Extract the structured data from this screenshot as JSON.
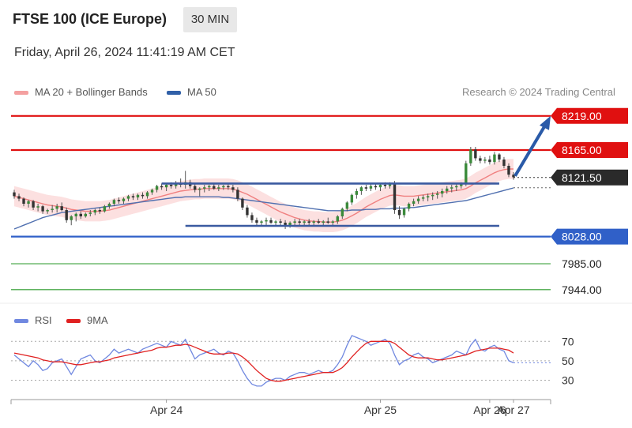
{
  "header": {
    "title": "FTSE 100 (ICE Europe)",
    "timeframe": "30 MIN",
    "timestamp": "Friday, April 26, 2024 11:41:19 AM CET"
  },
  "legend": [
    {
      "label": "MA 20 + Bollinger Bands",
      "color": "#f08080"
    },
    {
      "label": "MA 50",
      "color": "#3060a8"
    }
  ],
  "credit": "Research © 2024 Trading Central",
  "chart_data": [
    {
      "type": "candlestick",
      "ylim": [
        7925,
        8240
      ],
      "x_labels": [
        "Apr 24",
        "Apr 25",
        "Apr 26",
        "Apr 27"
      ],
      "current_price": "8121.50",
      "levels": [
        {
          "value": 8219.0,
          "label": "8219.00",
          "kind": "resistance",
          "color": "#e01010",
          "style": "solid-thick"
        },
        {
          "value": 8165.0,
          "label": "8165.00",
          "kind": "resistance",
          "color": "#e01010",
          "style": "solid-thick"
        },
        {
          "value": 8028.0,
          "label": "8028.00",
          "kind": "pivot",
          "color": "#3060c8",
          "style": "solid-thick"
        },
        {
          "value": 7985.0,
          "label": "7985.00",
          "kind": "support",
          "color": "#2a9a2a",
          "style": "thin"
        },
        {
          "value": 7944.0,
          "label": "7944.00",
          "kind": "support",
          "color": "#2a9a2a",
          "style": "thin"
        }
      ],
      "channel_lines": [
        {
          "from_index": 32,
          "to_index": 102,
          "value": 8112
        },
        {
          "from_index": 37,
          "to_index": 102,
          "value": 8045
        }
      ],
      "ohlc": [
        [
          8098,
          8102,
          8088,
          8092
        ],
        [
          8092,
          8096,
          8084,
          8088
        ],
        [
          8088,
          8090,
          8076,
          8080
        ],
        [
          8080,
          8086,
          8074,
          8084
        ],
        [
          8084,
          8086,
          8070,
          8074
        ],
        [
          8074,
          8080,
          8068,
          8076
        ],
        [
          8076,
          8078,
          8064,
          8068
        ],
        [
          8068,
          8072,
          8064,
          8070
        ],
        [
          8070,
          8078,
          8066,
          8072
        ],
        [
          8072,
          8080,
          8066,
          8076
        ],
        [
          8076,
          8082,
          8068,
          8070
        ],
        [
          8070,
          8074,
          8050,
          8054
        ],
        [
          8054,
          8062,
          8046,
          8060
        ],
        [
          8060,
          8066,
          8052,
          8064
        ],
        [
          8064,
          8068,
          8056,
          8060
        ],
        [
          8060,
          8066,
          8058,
          8064
        ],
        [
          8064,
          8070,
          8060,
          8066
        ],
        [
          8066,
          8072,
          8062,
          8070
        ],
        [
          8070,
          8074,
          8064,
          8068
        ],
        [
          8068,
          8078,
          8066,
          8076
        ],
        [
          8076,
          8082,
          8072,
          8080
        ],
        [
          8080,
          8088,
          8076,
          8086
        ],
        [
          8086,
          8090,
          8080,
          8084
        ],
        [
          8084,
          8090,
          8080,
          8088
        ],
        [
          8088,
          8094,
          8084,
          8092
        ],
        [
          8092,
          8096,
          8086,
          8090
        ],
        [
          8090,
          8096,
          8086,
          8094
        ],
        [
          8094,
          8098,
          8088,
          8092
        ],
        [
          8092,
          8100,
          8088,
          8098
        ],
        [
          8098,
          8104,
          8094,
          8102
        ],
        [
          8102,
          8110,
          8098,
          8108
        ],
        [
          8108,
          8112,
          8102,
          8106
        ],
        [
          8106,
          8112,
          8100,
          8110
        ],
        [
          8110,
          8114,
          8104,
          8108
        ],
        [
          8108,
          8116,
          8104,
          8112
        ],
        [
          8112,
          8120,
          8106,
          8110
        ],
        [
          8110,
          8132,
          8104,
          8114
        ],
        [
          8114,
          8118,
          8104,
          8108
        ],
        [
          8108,
          8112,
          8098,
          8102
        ],
        [
          8102,
          8106,
          8092,
          8104
        ],
        [
          8104,
          8110,
          8098,
          8106
        ],
        [
          8106,
          8110,
          8100,
          8108
        ],
        [
          8108,
          8112,
          8102,
          8104
        ],
        [
          8104,
          8110,
          8100,
          8106
        ],
        [
          8106,
          8110,
          8102,
          8108
        ],
        [
          8108,
          8112,
          8102,
          8106
        ],
        [
          8106,
          8110,
          8098,
          8102
        ],
        [
          8102,
          8106,
          8084,
          8088
        ],
        [
          8088,
          8090,
          8070,
          8074
        ],
        [
          8074,
          8078,
          8058,
          8062
        ],
        [
          8062,
          8066,
          8050,
          8054
        ],
        [
          8054,
          8058,
          8046,
          8050
        ],
        [
          8050,
          8054,
          8044,
          8052
        ],
        [
          8052,
          8058,
          8046,
          8054
        ],
        [
          8054,
          8058,
          8048,
          8050
        ],
        [
          8050,
          8054,
          8044,
          8052
        ],
        [
          8052,
          8056,
          8046,
          8050
        ],
        [
          8050,
          8054,
          8040,
          8046
        ],
        [
          8046,
          8052,
          8042,
          8050
        ],
        [
          8050,
          8056,
          8046,
          8052
        ],
        [
          8052,
          8056,
          8046,
          8050
        ],
        [
          8050,
          8054,
          8046,
          8052
        ],
        [
          8052,
          8056,
          8046,
          8050
        ],
        [
          8050,
          8054,
          8046,
          8052
        ],
        [
          8052,
          8056,
          8048,
          8050
        ],
        [
          8050,
          8054,
          8046,
          8052
        ],
        [
          8052,
          8058,
          8048,
          8050
        ],
        [
          8050,
          8054,
          8046,
          8052
        ],
        [
          8052,
          8062,
          8048,
          8060
        ],
        [
          8060,
          8074,
          8056,
          8072
        ],
        [
          8072,
          8084,
          8068,
          8082
        ],
        [
          8082,
          8096,
          8078,
          8094
        ],
        [
          8094,
          8104,
          8088,
          8100
        ],
        [
          8100,
          8108,
          8094,
          8106
        ],
        [
          8106,
          8110,
          8100,
          8104
        ],
        [
          8104,
          8112,
          8100,
          8108
        ],
        [
          8108,
          8112,
          8102,
          8106
        ],
        [
          8106,
          8112,
          8100,
          8110
        ],
        [
          8110,
          8114,
          8104,
          8108
        ],
        [
          8108,
          8114,
          8104,
          8112
        ],
        [
          8112,
          8116,
          8064,
          8070
        ],
        [
          8070,
          8076,
          8056,
          8062
        ],
        [
          8062,
          8074,
          8058,
          8072
        ],
        [
          8072,
          8082,
          8068,
          8080
        ],
        [
          8080,
          8088,
          8076,
          8084
        ],
        [
          8084,
          8092,
          8080,
          8088
        ],
        [
          8088,
          8094,
          8084,
          8090
        ],
        [
          8090,
          8096,
          8084,
          8092
        ],
        [
          8092,
          8098,
          8086,
          8094
        ],
        [
          8094,
          8100,
          8088,
          8096
        ],
        [
          8096,
          8104,
          8090,
          8100
        ],
        [
          8100,
          8108,
          8096,
          8104
        ],
        [
          8104,
          8110,
          8098,
          8106
        ],
        [
          8106,
          8112,
          8100,
          8108
        ],
        [
          8108,
          8114,
          8104,
          8112
        ],
        [
          8112,
          8148,
          8108,
          8144
        ],
        [
          8144,
          8170,
          8140,
          8166
        ],
        [
          8166,
          8170,
          8148,
          8152
        ],
        [
          8152,
          8156,
          8144,
          8148
        ],
        [
          8148,
          8154,
          8144,
          8150
        ],
        [
          8150,
          8156,
          8142,
          8146
        ],
        [
          8146,
          8162,
          8142,
          8158
        ],
        [
          8158,
          8160,
          8146,
          8150
        ],
        [
          8150,
          8154,
          8136,
          8140
        ],
        [
          8140,
          8144,
          8122,
          8126
        ],
        [
          8126,
          8130,
          8118,
          8122
        ]
      ],
      "ma20": [
        8092,
        8090,
        8088,
        8086,
        8084,
        8082,
        8080,
        8078,
        8077,
        8076,
        8075,
        8073,
        8071,
        8070,
        8069,
        8068,
        8068,
        8068,
        8068,
        8069,
        8070,
        8072,
        8074,
        8076,
        8078,
        8080,
        8082,
        8084,
        8086,
        8088,
        8090,
        8092,
        8094,
        8096,
        8098,
        8100,
        8101,
        8102,
        8103,
        8103,
        8104,
        8104,
        8104,
        8104,
        8104,
        8104,
        8103,
        8101,
        8098,
        8095,
        8091,
        8087,
        8083,
        8079,
        8075,
        8071,
        8067,
        8064,
        8061,
        8058,
        8056,
        8054,
        8053,
        8052,
        8052,
        8051,
        8051,
        8051,
        8052,
        8054,
        8057,
        8061,
        8065,
        8070,
        8075,
        8079,
        8083,
        8087,
        8090,
        8093,
        8094,
        8093,
        8092,
        8092,
        8092,
        8093,
        8094,
        8095,
        8096,
        8097,
        8098,
        8099,
        8100,
        8101,
        8102,
        8104,
        8108,
        8113,
        8117,
        8121,
        8125,
        8129,
        8132,
        8134,
        8135,
        8135
      ],
      "ma50": [
        8040,
        8043,
        8046,
        8049,
        8052,
        8055,
        8058,
        8060,
        8062,
        8064,
        8066,
        8067,
        8068,
        8069,
        8070,
        8071,
        8072,
        8073,
        8074,
        8075,
        8076,
        8077,
        8078,
        8079,
        8080,
        8081,
        8082,
        8083,
        8084,
        8085,
        8086,
        8087,
        8088,
        8089,
        8090,
        8090,
        8091,
        8091,
        8091,
        8091,
        8091,
        8091,
        8091,
        8091,
        8090,
        8090,
        8089,
        8088,
        8087,
        8086,
        8085,
        8084,
        8083,
        8082,
        8081,
        8080,
        8079,
        8078,
        8077,
        8076,
        8075,
        8074,
        8073,
        8072,
        8071,
        8070,
        8069,
        8069,
        8069,
        8069,
        8069,
        8070,
        8070,
        8070,
        8071,
        8071,
        8071,
        8072,
        8072,
        8072,
        8073,
        8073,
        8073,
        8074,
        8074,
        8075,
        8076,
        8077,
        8078,
        8079,
        8080,
        8081,
        8082,
        8083,
        8084,
        8085,
        8087,
        8089,
        8091,
        8093,
        8095,
        8097,
        8099,
        8101,
        8103,
        8105
      ]
    },
    {
      "type": "line",
      "ylim": [
        15,
        80
      ],
      "y_ticks": [
        "70",
        "50",
        "30"
      ],
      "y_tick_values": [
        70,
        50,
        30
      ],
      "series": [
        {
          "name": "RSI",
          "color": "#7088e0"
        },
        {
          "name": "9MA",
          "color": "#e02020"
        }
      ],
      "rsi": [
        56,
        52,
        48,
        44,
        50,
        46,
        40,
        42,
        48,
        50,
        52,
        44,
        36,
        44,
        52,
        54,
        56,
        50,
        48,
        52,
        56,
        62,
        58,
        60,
        62,
        60,
        58,
        62,
        64,
        66,
        68,
        66,
        64,
        70,
        68,
        66,
        72,
        62,
        52,
        56,
        58,
        60,
        62,
        58,
        56,
        60,
        58,
        50,
        40,
        32,
        26,
        24,
        24,
        28,
        30,
        32,
        32,
        30,
        34,
        36,
        38,
        38,
        36,
        38,
        40,
        38,
        38,
        40,
        46,
        54,
        66,
        76,
        74,
        72,
        70,
        66,
        68,
        70,
        72,
        68,
        56,
        46,
        50,
        52,
        56,
        58,
        54,
        52,
        48,
        50,
        52,
        54,
        56,
        60,
        58,
        56,
        66,
        72,
        62,
        60,
        64,
        66,
        62,
        60,
        50,
        48
      ],
      "rsi_ma": [
        58,
        57,
        56,
        55,
        54,
        53,
        51,
        50,
        49,
        49,
        49,
        48,
        47,
        46,
        46,
        47,
        48,
        49,
        49,
        50,
        51,
        53,
        54,
        55,
        56,
        57,
        58,
        59,
        60,
        61,
        63,
        64,
        64,
        65,
        66,
        66,
        67,
        66,
        64,
        62,
        60,
        58,
        57,
        57,
        57,
        58,
        58,
        57,
        54,
        50,
        45,
        40,
        36,
        32,
        30,
        29,
        29,
        30,
        31,
        32,
        33,
        34,
        35,
        36,
        37,
        38,
        38,
        38,
        40,
        43,
        48,
        54,
        59,
        64,
        68,
        70,
        70,
        70,
        70,
        70,
        68,
        64,
        60,
        56,
        54,
        53,
        53,
        53,
        52,
        51,
        51,
        52,
        53,
        54,
        55,
        56,
        58,
        60,
        61,
        62,
        63,
        63,
        63,
        62,
        61,
        58
      ]
    }
  ]
}
